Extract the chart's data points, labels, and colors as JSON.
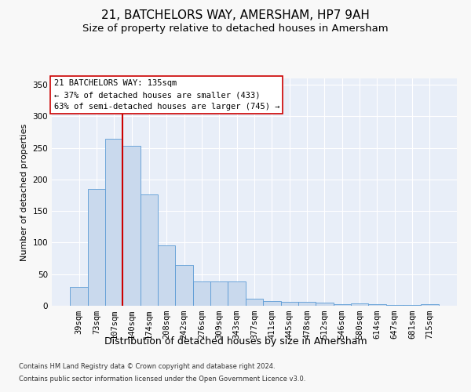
{
  "title": "21, BATCHELORS WAY, AMERSHAM, HP7 9AH",
  "subtitle": "Size of property relative to detached houses in Amersham",
  "xlabel": "Distribution of detached houses by size in Amersham",
  "ylabel": "Number of detached properties",
  "categories": [
    "39sqm",
    "73sqm",
    "107sqm",
    "140sqm",
    "174sqm",
    "208sqm",
    "242sqm",
    "276sqm",
    "309sqm",
    "343sqm",
    "377sqm",
    "411sqm",
    "445sqm",
    "478sqm",
    "512sqm",
    "546sqm",
    "580sqm",
    "614sqm",
    "647sqm",
    "681sqm",
    "715sqm"
  ],
  "values": [
    30,
    185,
    265,
    253,
    176,
    95,
    65,
    38,
    38,
    38,
    11,
    8,
    6,
    6,
    5,
    3,
    4,
    3,
    1,
    1,
    2
  ],
  "bar_color": "#c9d9ed",
  "bar_edge_color": "#5b9bd5",
  "vline_x_index": 2,
  "vline_color": "#cc0000",
  "ylim": [
    0,
    360
  ],
  "yticks": [
    0,
    50,
    100,
    150,
    200,
    250,
    300,
    350
  ],
  "annotation_text": "21 BATCHELORS WAY: 135sqm\n← 37% of detached houses are smaller (433)\n63% of semi-detached houses are larger (745) →",
  "annotation_box_color": "#ffffff",
  "annotation_box_edge_color": "#cc0000",
  "footnote1": "Contains HM Land Registry data © Crown copyright and database right 2024.",
  "footnote2": "Contains public sector information licensed under the Open Government Licence v3.0.",
  "plot_bg_color": "#e8eef8",
  "fig_bg_color": "#f8f8f8",
  "grid_color": "#ffffff",
  "title_fontsize": 11,
  "subtitle_fontsize": 9.5,
  "xlabel_fontsize": 9,
  "ylabel_fontsize": 8,
  "tick_fontsize": 7.5,
  "annotation_fontsize": 7.5,
  "footnote_fontsize": 6
}
